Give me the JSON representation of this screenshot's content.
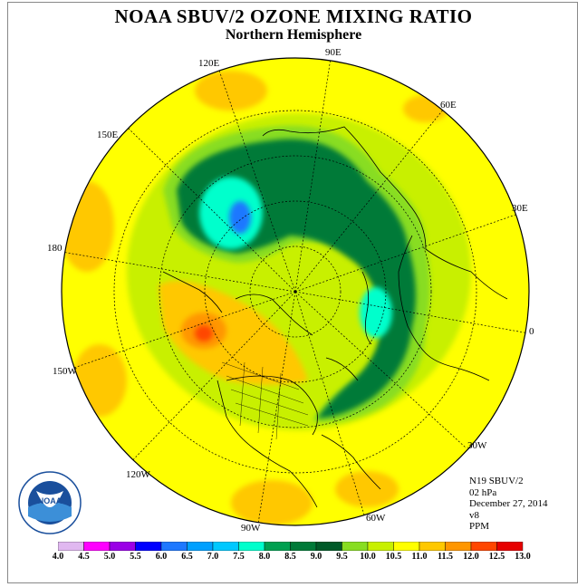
{
  "title": "NOAA SBUV/2 OZONE MIXING RATIO",
  "subtitle": "Northern Hemisphere",
  "longitude_labels": {
    "e90": "90E",
    "e120": "120E",
    "e60": "60E",
    "e150": "150E",
    "e30": "30E",
    "l180": "180",
    "l0": "0",
    "w150": "150W",
    "w30": "30W",
    "w120": "120W",
    "w90": "90W",
    "w60": "60W"
  },
  "info": {
    "instrument": "N19 SBUV/2",
    "pressure": "02 hPa",
    "date": "December 27, 2014",
    "version": "v8",
    "units": "PPM"
  },
  "logo": {
    "text": "NOAA",
    "ring_text": "NATIONAL OCEANIC AND ATMOSPHERIC ADMINISTRATION · U.S. DEPARTMENT OF COMMERCE"
  },
  "colorbar": {
    "ticks": [
      "4.0",
      "4.5",
      "5.0",
      "5.5",
      "6.0",
      "6.5",
      "7.0",
      "7.5",
      "8.0",
      "8.5",
      "9.0",
      "9.5",
      "10.0",
      "10.5",
      "11.0",
      "11.5",
      "12.0",
      "12.5",
      "13.0"
    ],
    "colors": [
      "#b388e6",
      "#e0b8f0",
      "#ff00ff",
      "#9a00e6",
      "#0000ff",
      "#1e78ff",
      "#00a0ff",
      "#00c8ff",
      "#00ffcc",
      "#00a050",
      "#007a38",
      "#005a28",
      "#88dd22",
      "#c8f000",
      "#ffff00",
      "#ffc800",
      "#ff9600",
      "#ff4600",
      "#e60000",
      "#8b4513"
    ]
  }
}
